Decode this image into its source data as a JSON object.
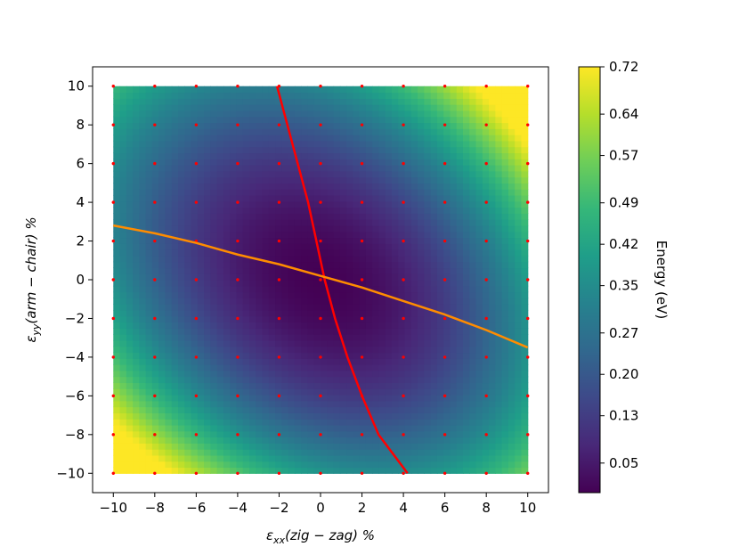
{
  "chart_data": {
    "type": "heatmap",
    "xlabel": {
      "pre": "ε",
      "sub": "xx",
      "post": "(zig − zag) %"
    },
    "ylabel": {
      "pre": "ε",
      "sub": "yy",
      "post": "(arm − chair) %"
    },
    "xlim": [
      -11,
      11
    ],
    "ylim": [
      -11,
      11
    ],
    "xticks": [
      "−10",
      "−8",
      "−6",
      "−4",
      "−2",
      "0",
      "2",
      "4",
      "6",
      "8",
      "10"
    ],
    "yticks": [
      "10",
      "8",
      "6",
      "4",
      "2",
      "0",
      "−2",
      "−4",
      "−6",
      "−8",
      "−10"
    ],
    "colorbar": {
      "label": "Energy (eV)",
      "min": 0.0,
      "max": 0.72,
      "ticks": [
        "0.72",
        "0.64",
        "0.57",
        "0.49",
        "0.42",
        "0.35",
        "0.27",
        "0.20",
        "0.13",
        "0.05"
      ],
      "colormap": [
        "#440154",
        "#482878",
        "#3e4989",
        "#31688e",
        "#26828e",
        "#1f9e89",
        "#35b779",
        "#6ece58",
        "#b5de2b",
        "#fde725"
      ]
    },
    "grid_points": {
      "x": [
        -10,
        -8,
        -6,
        -4,
        -2,
        0,
        2,
        4,
        6,
        8,
        10
      ],
      "y": [
        -10,
        -8,
        -6,
        -4,
        -2,
        0,
        2,
        4,
        6,
        8,
        10
      ],
      "color": "#ff0000"
    },
    "series": [
      {
        "color": "#ff0000",
        "x": [
          -2.1,
          -1.6,
          -1.1,
          -0.6,
          -0.2,
          0.2,
          0.7,
          1.3,
          2.0,
          2.8,
          3.5,
          4.2
        ],
        "y": [
          10,
          8,
          6,
          4,
          2,
          0,
          -2,
          -4,
          -6,
          -8,
          -9,
          -10
        ]
      },
      {
        "color": "#ff8c00",
        "x": [
          -10,
          -8,
          -6,
          -4,
          -2,
          0,
          2,
          4,
          6,
          8,
          10
        ],
        "y": [
          2.8,
          2.4,
          1.9,
          1.3,
          0.8,
          0.2,
          -0.4,
          -1.1,
          -1.8,
          -2.6,
          -3.5
        ]
      }
    ],
    "grid": false
  }
}
